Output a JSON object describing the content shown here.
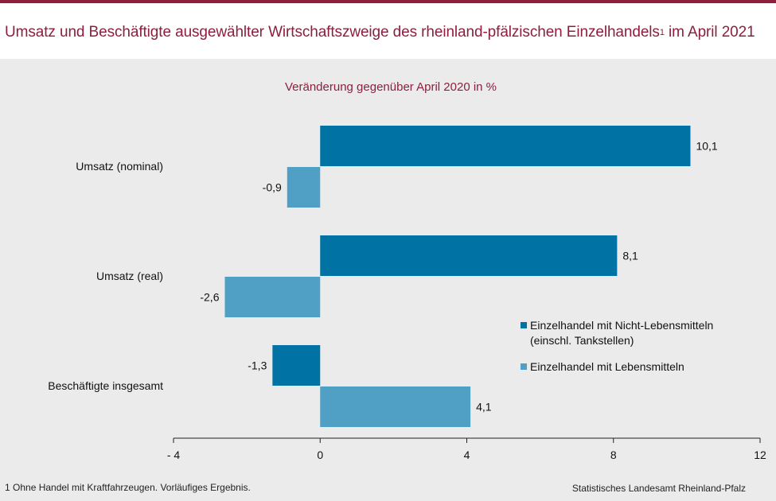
{
  "header": {
    "title": "Umsatz und Beschäftigte ausgewählter Wirtschaftszweige des rheinland-pfälzischen Einzelhandels",
    "title_sup": "1",
    "title_suffix": " im April 2021"
  },
  "chart_data": {
    "type": "bar",
    "orientation": "horizontal",
    "title": "Veränderung gegenüber April 2020 in %",
    "categories": [
      "Umsatz (nominal)",
      "Umsatz (real)",
      "Beschäftigte insgesamt"
    ],
    "series": [
      {
        "name": "Einzelhandel mit Nicht-Lebensmitteln (einschl. Tankstellen)",
        "legend_lines": [
          "Einzelhandel mit Nicht-Lebensmitteln",
          "(einschl. Tankstellen)"
        ],
        "color": "#0072a3",
        "values": [
          10.1,
          8.1,
          -1.3
        ],
        "labels": [
          "10,1",
          "8,1",
          "-1,3"
        ]
      },
      {
        "name": "Einzelhandel mit Lebensmitteln",
        "legend_lines": [
          "Einzelhandel mit Lebensmitteln"
        ],
        "color": "#4fa0c4",
        "values": [
          -0.9,
          -2.6,
          4.1
        ],
        "labels": [
          "-0,9",
          "-2,6",
          "4,1"
        ]
      }
    ],
    "xlim": [
      -4,
      12
    ],
    "xticks": [
      -4,
      0,
      4,
      8,
      12
    ],
    "xtick_labels": [
      "- 4",
      "0",
      "4",
      "8",
      "12"
    ],
    "legend_position": "right",
    "grid": false
  },
  "footer": {
    "footnote": "1 Ohne Handel mit Kraftfahrzeugen. Vorläufiges Ergebnis.",
    "source": "Statistisches Landesamt Rheinland-Pfalz"
  }
}
